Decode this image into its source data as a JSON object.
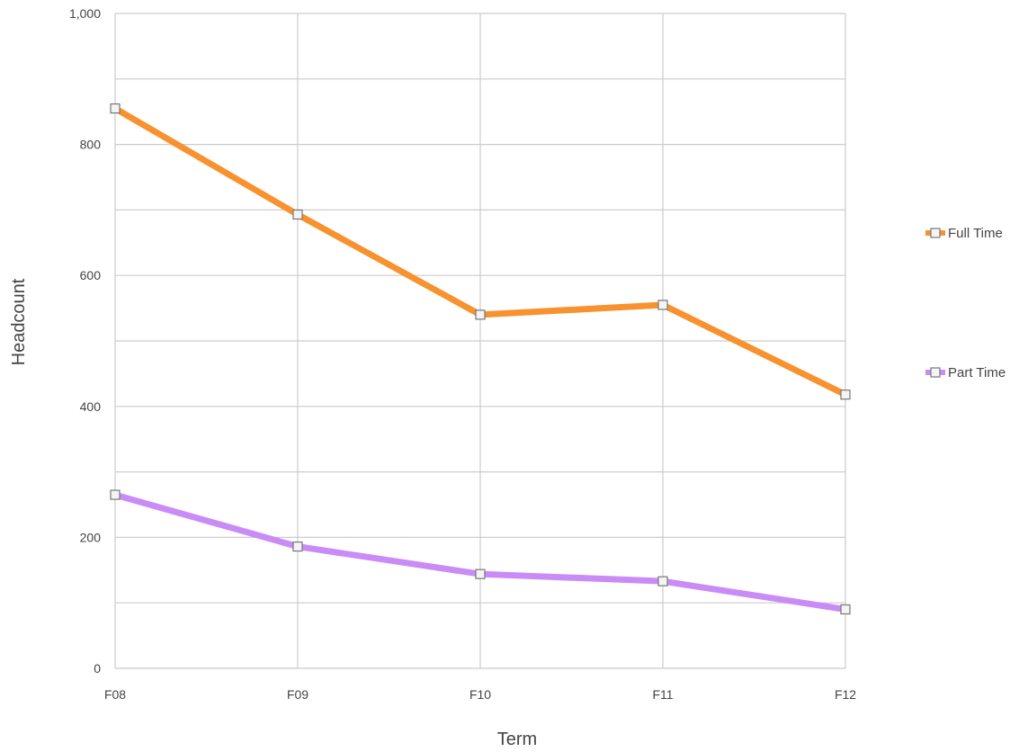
{
  "chart_data": {
    "type": "line",
    "xlabel": "Term",
    "ylabel": "Headcount",
    "categories": [
      "F08",
      "F09",
      "F10",
      "F11",
      "F12"
    ],
    "ylim": [
      0,
      1000
    ],
    "y_ticks": [
      0,
      200,
      400,
      600,
      800,
      1000
    ],
    "y_tick_labels": [
      "0",
      "200",
      "400",
      "600",
      "800",
      "1,000"
    ],
    "grid": true,
    "legend_position": "right",
    "series": [
      {
        "name": "Full Time",
        "color": "#f7922f",
        "values": [
          855,
          693,
          540,
          555,
          418
        ]
      },
      {
        "name": "Part Time",
        "color": "#c98cf6",
        "values": [
          265,
          186,
          144,
          133,
          90
        ]
      }
    ]
  }
}
